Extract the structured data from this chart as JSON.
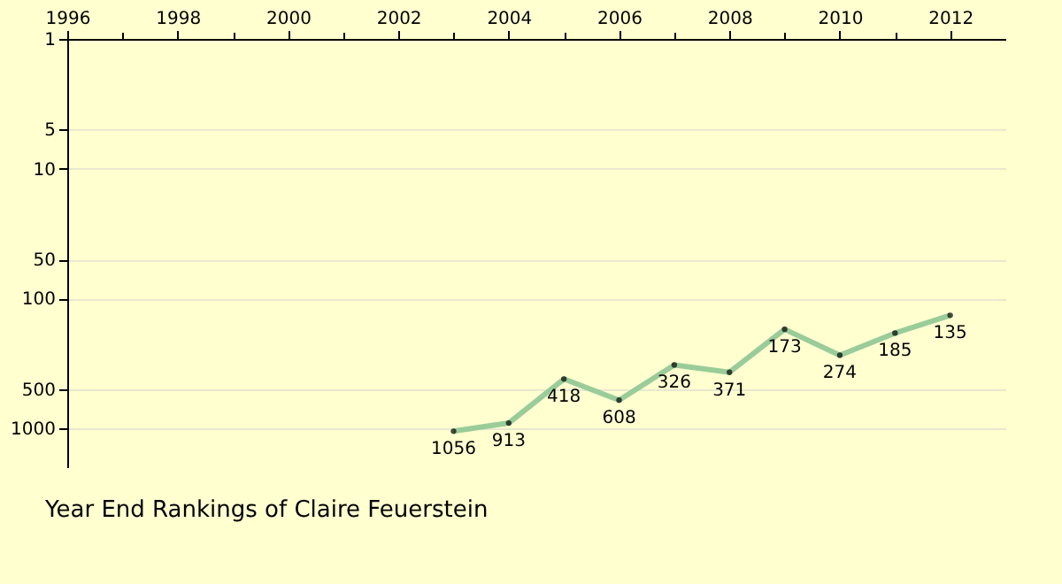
{
  "chart_data": {
    "type": "line",
    "title": "Year End Rankings of Claire Feuerstein",
    "x": [
      2003,
      2004,
      2005,
      2006,
      2007,
      2008,
      2009,
      2010,
      2011,
      2012
    ],
    "series": [
      {
        "color": "#99cc99",
        "values": [
          1056,
          913,
          418,
          608,
          326,
          371,
          173,
          274,
          185,
          135
        ]
      }
    ],
    "xlim": [
      1996,
      2013
    ],
    "xticks": [
      1996,
      {
        "value": 1997,
        "label": null
      },
      1998,
      {
        "value": 1999,
        "label": null
      },
      2000,
      {
        "value": 2001,
        "label": null
      },
      2002,
      {
        "value": 2003,
        "label": null
      },
      2004,
      {
        "value": 2005,
        "label": null
      },
      2006,
      {
        "value": 2007,
        "label": null
      },
      2008,
      {
        "value": 2009,
        "label": null
      },
      2010,
      {
        "value": 2011,
        "label": null
      },
      2012
    ],
    "ylim": [
      2000,
      1
    ],
    "yticks": [
      1,
      5,
      10,
      50,
      100,
      500,
      1000
    ],
    "log": "y",
    "grid": "y",
    "marker": "circle",
    "line_style": "solid",
    "data_labels": true,
    "legend": false
  }
}
